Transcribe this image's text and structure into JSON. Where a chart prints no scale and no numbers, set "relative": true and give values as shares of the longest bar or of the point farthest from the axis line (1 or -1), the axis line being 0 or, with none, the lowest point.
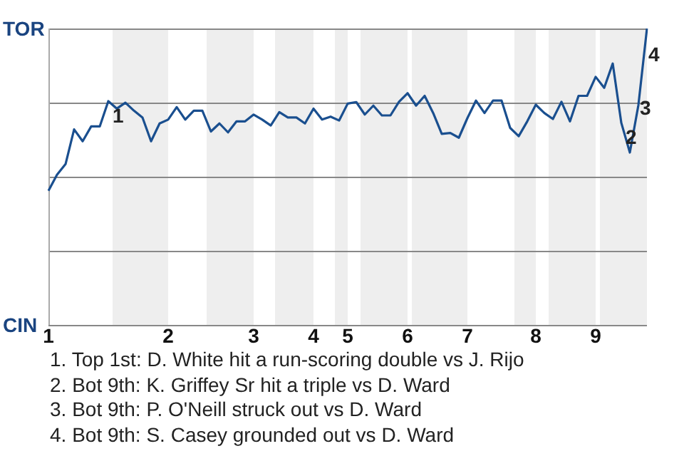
{
  "chart_data": {
    "type": "line",
    "relative": true,
    "categories": [
      "1",
      null,
      null,
      null,
      null,
      null,
      null,
      null,
      null,
      null,
      null,
      null,
      null,
      null,
      "2",
      null,
      null,
      null,
      null,
      null,
      null,
      null,
      null,
      null,
      "3",
      null,
      null,
      null,
      null,
      null,
      null,
      "4",
      null,
      null,
      null,
      "5",
      null,
      null,
      null,
      null,
      null,
      null,
      "6",
      null,
      null,
      null,
      null,
      null,
      null,
      "7",
      null,
      null,
      null,
      null,
      null,
      null,
      null,
      "8",
      null,
      null,
      null,
      null,
      null,
      null,
      "9",
      null,
      null,
      null,
      null,
      null,
      null
    ],
    "series": [
      {
        "color": "#1a4f8f",
        "values": [
          0.453,
          0.507,
          0.543,
          0.66,
          0.62,
          0.67,
          0.67,
          0.755,
          0.73,
          0.75,
          0.723,
          0.7,
          0.62,
          0.68,
          0.693,
          0.735,
          0.693,
          0.723,
          0.723,
          0.653,
          0.68,
          0.65,
          0.687,
          0.687,
          0.71,
          0.693,
          0.673,
          0.718,
          0.7,
          0.7,
          0.68,
          0.73,
          0.693,
          0.703,
          0.69,
          0.747,
          0.752,
          0.71,
          0.74,
          0.707,
          0.707,
          0.753,
          0.782,
          0.74,
          0.773,
          0.715,
          0.645,
          0.648,
          0.632,
          0.698,
          0.757,
          0.715,
          0.757,
          0.757,
          0.665,
          0.637,
          0.687,
          0.743,
          0.715,
          0.695,
          0.753,
          0.687,
          0.773,
          0.773,
          0.837,
          0.8,
          0.882,
          0.682,
          0.582,
          0.742,
          1
        ]
      }
    ],
    "grid": "y",
    "marker": "none",
    "annotations": [
      "TOR",
      "CIN",
      {
        "text": "1",
        "y": 0.755
      },
      {
        "text": "2",
        "y": 0.682
      },
      {
        "text": "3",
        "y": 0.742
      },
      {
        "text": "4",
        "y": 1
      },
      "1. Top 1st: D. White hit a run-scoring double vs J. Rijo",
      "2. Bot 9th: K. Griffey Sr hit a triple vs D. Ward",
      "3. Bot 9th: P. O'Neill struck out vs D. Ward",
      "4. Bot 9th: S. Casey grounded out vs D. Ward"
    ]
  }
}
